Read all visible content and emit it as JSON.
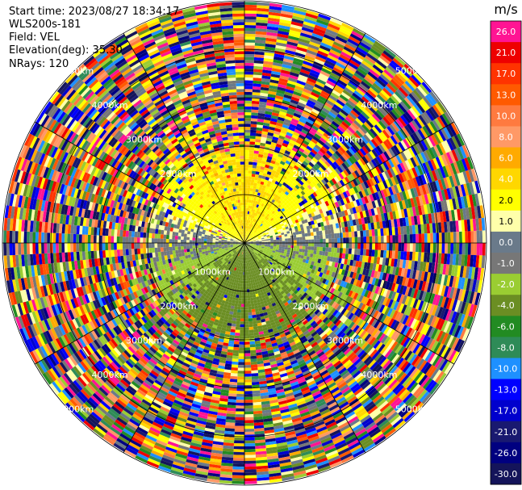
{
  "info": {
    "start_time": "Start time: 2023/08/27 18:34:17",
    "instrument": "WLS200s-181",
    "field": "Field: VEL",
    "elevation": "Elevation(deg): 35.30",
    "nrays": "NRays: 120"
  },
  "chart_data": {
    "type": "heatmap",
    "projection": "polar-ppi",
    "title": "",
    "field": "VEL",
    "units": "m/s",
    "elevation_deg": 35.3,
    "n_rays": 120,
    "range_rings_m": [
      1000,
      2000,
      3000,
      4000,
      5000
    ],
    "max_range_m": 5000,
    "range_labels": [
      {
        "text": "1000km",
        "angle_deg": 225
      },
      {
        "text": "1000km",
        "angle_deg": 135
      },
      {
        "text": "2000km",
        "angle_deg": 315
      },
      {
        "text": "2000km",
        "angle_deg": 45
      },
      {
        "text": "2000km",
        "angle_deg": 225
      },
      {
        "text": "2000km",
        "angle_deg": 135
      },
      {
        "text": "3000km",
        "angle_deg": 315
      },
      {
        "text": "3000km",
        "angle_deg": 45
      },
      {
        "text": "3000km",
        "angle_deg": 225
      },
      {
        "text": "3000km",
        "angle_deg": 135
      },
      {
        "text": "4000km",
        "angle_deg": 315
      },
      {
        "text": "4000km",
        "angle_deg": 45
      },
      {
        "text": "4000km",
        "angle_deg": 225
      },
      {
        "text": "4000km",
        "angle_deg": 135
      },
      {
        "text": "5000km",
        "angle_deg": 315
      },
      {
        "text": "5000km",
        "angle_deg": 45
      },
      {
        "text": "5000km",
        "angle_deg": 225
      },
      {
        "text": "5000km",
        "angle_deg": 135
      }
    ],
    "colorbar": {
      "unit_label": "m/s",
      "ticks": [
        "26.0",
        "21.0",
        "17.0",
        "13.0",
        "10.0",
        "8.0",
        "6.0",
        "4.0",
        "2.0",
        "1.0",
        "0.0",
        "-1.0",
        "-2.0",
        "-4.0",
        "-6.0",
        "-8.0",
        "-10.0",
        "-13.0",
        "-17.0",
        "-21.0",
        "-26.0",
        "-30.0"
      ],
      "colors": [
        "#ff1493",
        "#ee0000",
        "#ff3300",
        "#ff5a00",
        "#ff7a3f",
        "#ff9966",
        "#ffaa00",
        "#ffd700",
        "#ffff00",
        "#ffffaa",
        "#6a7a8a",
        "#777777",
        "#9acd32",
        "#6b8e23",
        "#228b22",
        "#2e8b57",
        "#1e90ff",
        "#0000ff",
        "#0000cd",
        "#191970",
        "#000080",
        "#14145a"
      ]
    },
    "regions": [
      {
        "name": "near-noise-free inner zone",
        "r_min_m": 0,
        "r_max_m": 2000
      },
      {
        "name": "noise-dominated outer zone",
        "r_min_m": 2000,
        "r_max_m": 5000
      }
    ],
    "pattern": {
      "positive_sector": "north (yellow, ~2 to 4 m/s)",
      "negative_sector": "south (green, ~-2 to -4 m/s)",
      "near_zero": "east-west band (grey, ~0 m/s)"
    }
  }
}
